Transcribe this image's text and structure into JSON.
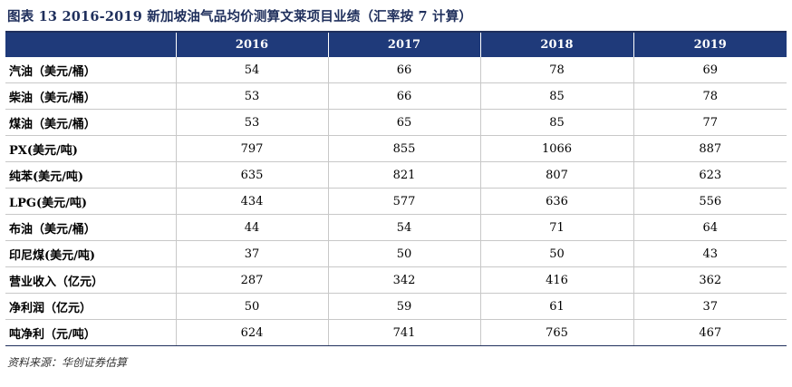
{
  "figure": {
    "title": "图表 13   2016-2019 新加坡油气品均价测算文莱项目业绩（汇率按 7 计算）",
    "source": "资料来源：华创证券估算"
  },
  "table": {
    "columns": [
      "",
      "2016",
      "2017",
      "2018",
      "2019"
    ],
    "rows": [
      {
        "label": "汽油（美元/桶）",
        "values": [
          "54",
          "66",
          "78",
          "69"
        ]
      },
      {
        "label": "柴油（美元/桶）",
        "values": [
          "53",
          "66",
          "85",
          "78"
        ]
      },
      {
        "label": "煤油（美元/桶）",
        "values": [
          "53",
          "65",
          "85",
          "77"
        ]
      },
      {
        "label": "PX(美元/吨)",
        "values": [
          "797",
          "855",
          "1066",
          "887"
        ]
      },
      {
        "label": "纯苯(美元/吨)",
        "values": [
          "635",
          "821",
          "807",
          "623"
        ]
      },
      {
        "label": "LPG(美元/吨)",
        "values": [
          "434",
          "577",
          "636",
          "556"
        ]
      },
      {
        "label": "布油（美元/桶）",
        "values": [
          "44",
          "54",
          "71",
          "64"
        ]
      },
      {
        "label": "印尼煤(美元/吨)",
        "values": [
          "37",
          "50",
          "50",
          "43"
        ]
      },
      {
        "label": "营业收入（亿元）",
        "values": [
          "287",
          "342",
          "416",
          "362"
        ]
      },
      {
        "label": "净利润（亿元）",
        "values": [
          "50",
          "59",
          "61",
          "37"
        ]
      },
      {
        "label": "吨净利（元/吨）",
        "values": [
          "624",
          "741",
          "765",
          "467"
        ]
      }
    ]
  },
  "colors": {
    "header_bg": "#1f3a7a",
    "title_text": "#1f2f5c",
    "grid": "#c8c8c8"
  }
}
